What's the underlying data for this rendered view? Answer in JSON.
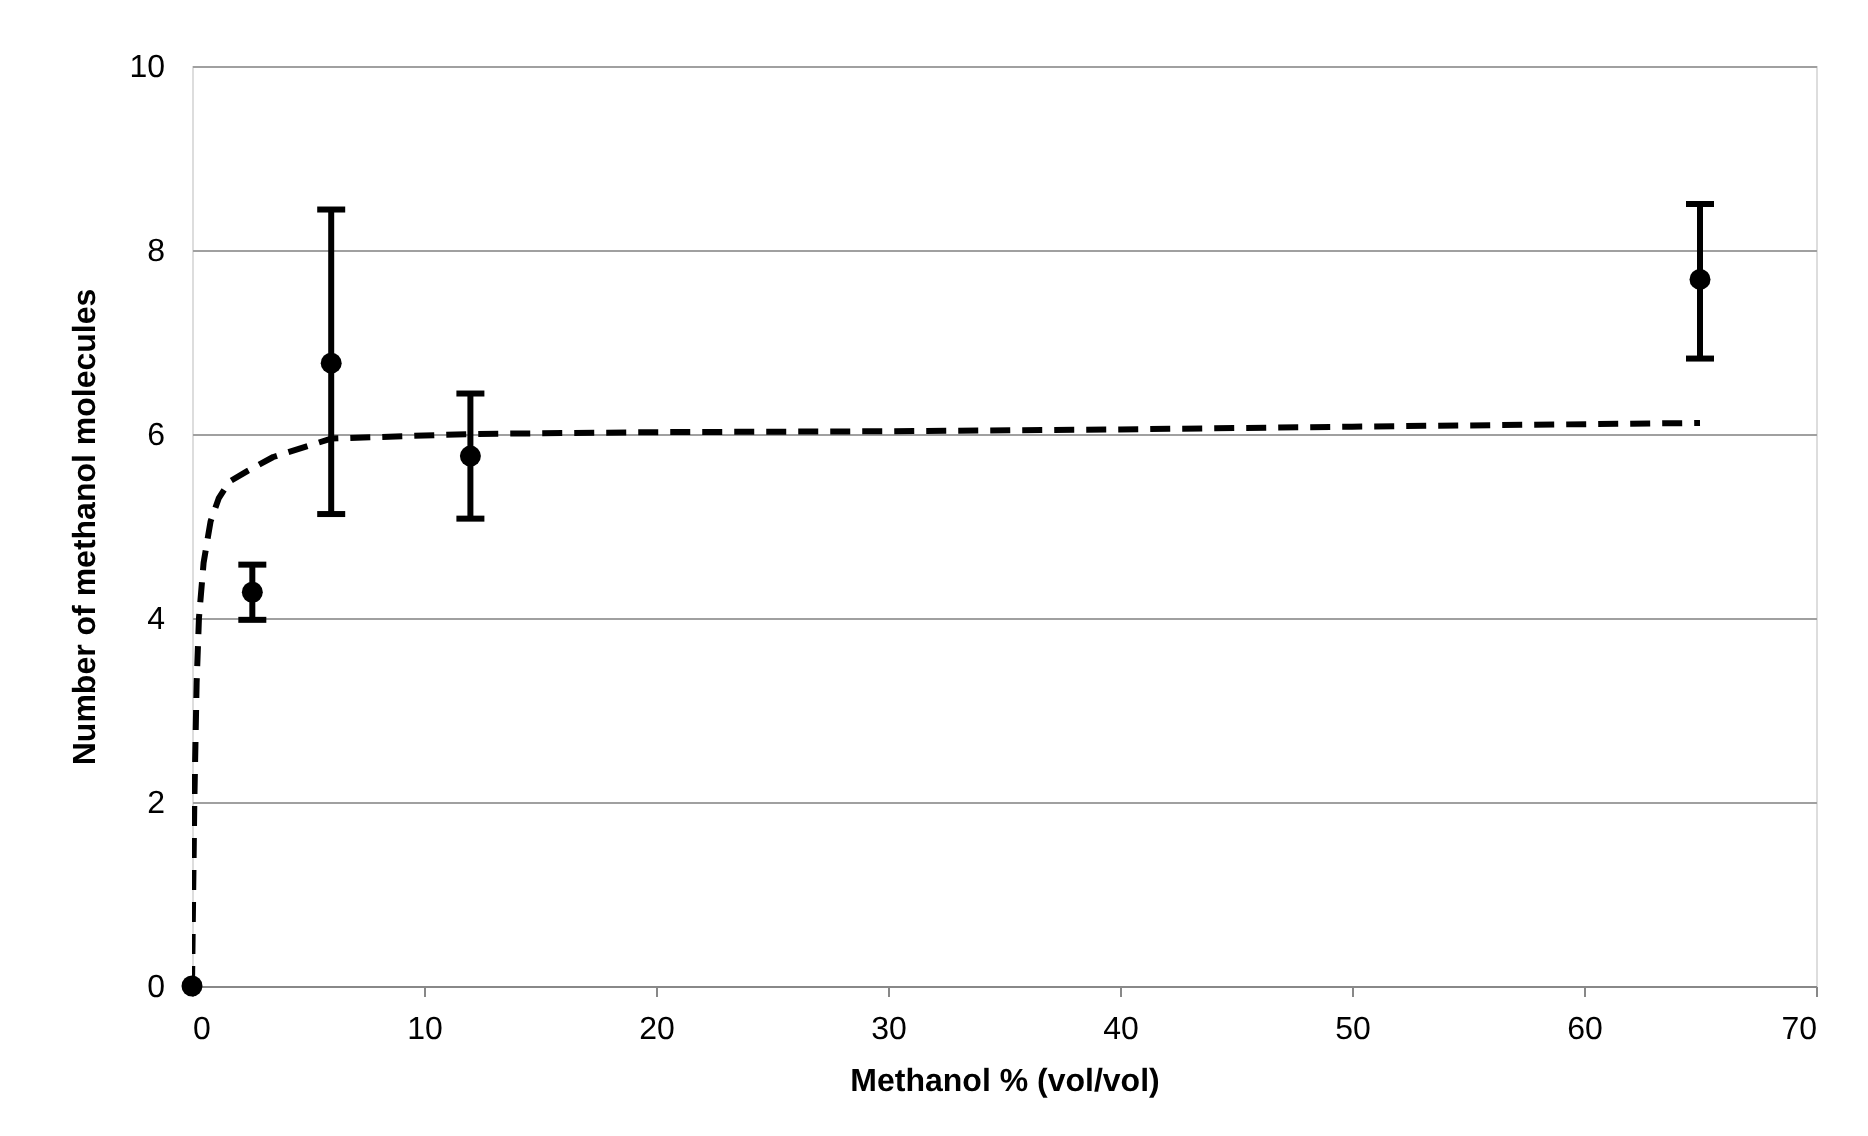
{
  "chart_data": {
    "type": "scatter",
    "xlabel": "Methanol % (vol/vol)",
    "ylabel": "Number of methanol molecules",
    "xlim": [
      0,
      70
    ],
    "xticks": [
      0,
      10,
      20,
      30,
      40,
      50,
      60,
      70
    ],
    "ylim": [
      0,
      10
    ],
    "yticks": [
      0,
      2,
      4,
      6,
      8,
      10
    ],
    "grid": "y",
    "legend": false,
    "series": [
      {
        "color": "#000000",
        "marker": "circle",
        "x": [
          0,
          2.6,
          6,
          12,
          65
        ],
        "values": [
          0,
          4.28,
          6.77,
          5.76,
          7.68
        ],
        "errors": [
          null,
          [
            3.98,
            4.58
          ],
          [
            5.13,
            8.44
          ],
          [
            5.08,
            6.44
          ],
          [
            6.82,
            8.5
          ]
        ]
      },
      {
        "type": "line",
        "color": "#000000",
        "line_style": "dashed",
        "marker": "none",
        "x": [
          0,
          0.05,
          0.1,
          0.2,
          0.3,
          0.5,
          0.8,
          1.15,
          1.6,
          2.4,
          3.5,
          6,
          12,
          20,
          30,
          40,
          50,
          65
        ],
        "values": [
          0,
          1,
          2,
          3.3,
          4,
          4.6,
          5.05,
          5.3,
          5.48,
          5.6,
          5.75,
          5.95,
          6.0,
          6.02,
          6.03,
          6.05,
          6.08,
          6.12
        ]
      }
    ]
  }
}
